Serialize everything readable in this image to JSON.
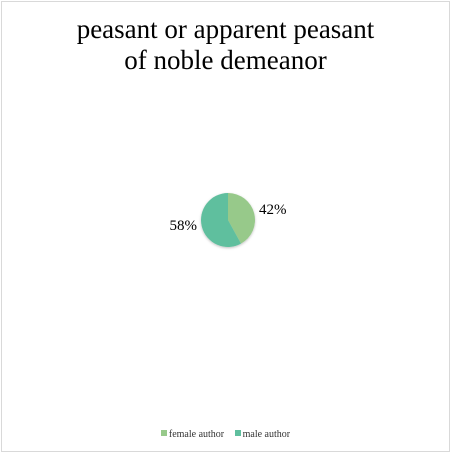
{
  "chart_data": {
    "type": "pie",
    "title": [
      "peasant or apparent peasant",
      "of noble demeanor"
    ],
    "slices": [
      {
        "label": "female author",
        "value": 42,
        "data_label": "42%",
        "color": "#97c98a"
      },
      {
        "label": "male author",
        "value": 58,
        "data_label": "58%",
        "color": "#5fbf9e"
      }
    ],
    "legend_position": "bottom"
  }
}
